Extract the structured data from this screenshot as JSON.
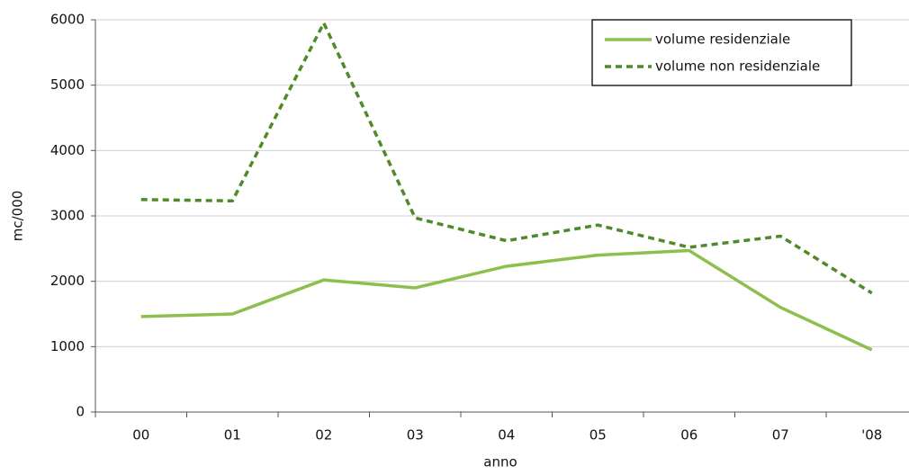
{
  "chart_data": {
    "type": "line",
    "x_label": "anno",
    "y_label": "mc/000",
    "categories": [
      "00",
      "01",
      "02",
      "03",
      "04",
      "05",
      "06",
      "07",
      "'08"
    ],
    "series": [
      {
        "name": "volume residenziale",
        "color": "#8dbf4f",
        "dashed": false,
        "values": [
          1460,
          1500,
          2020,
          1900,
          2230,
          2400,
          2470,
          1600,
          950
        ]
      },
      {
        "name": "volume non residenziale",
        "color": "#4f8a2a",
        "dashed": true,
        "values": [
          3250,
          3230,
          5950,
          2970,
          2620,
          2860,
          2520,
          2690,
          1820
        ]
      }
    ],
    "ylim": [
      0,
      6000
    ],
    "yticks": [
      0,
      1000,
      2000,
      3000,
      4000,
      5000,
      6000
    ],
    "grid": true,
    "legend": "top-right"
  }
}
